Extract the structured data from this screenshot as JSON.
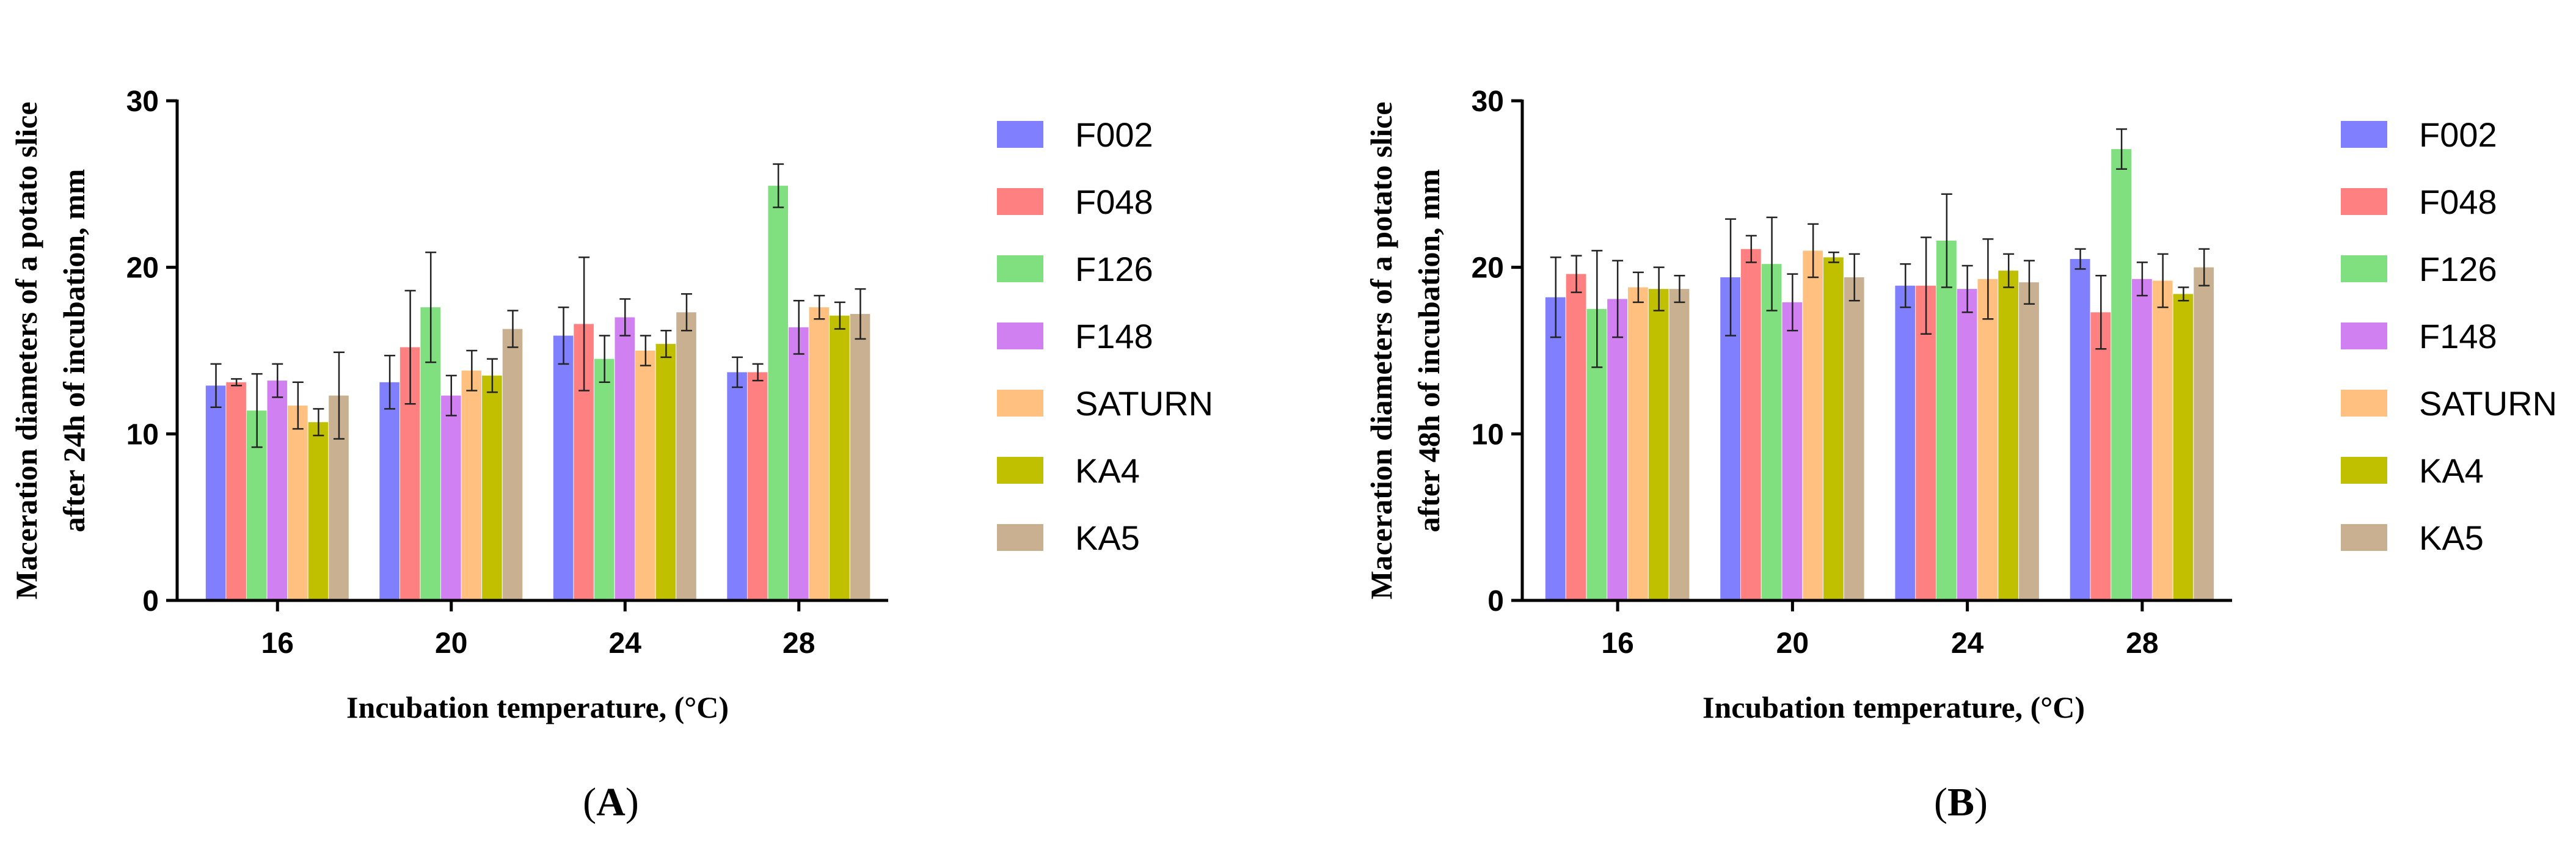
{
  "chart_data": [
    {
      "panel": "A",
      "panel_label": "A",
      "type": "bar",
      "categories": [
        "16",
        "20",
        "24",
        "28"
      ],
      "ylabel": [
        "Maceration diameters of a potato slice",
        "after 24h of incubation, mm"
      ],
      "xlabel": "Incubation temperature, (°C)",
      "ylim": [
        0,
        30
      ],
      "yticks": [
        0,
        10,
        20,
        30
      ],
      "series": [
        {
          "name": "F002",
          "values": [
            12.9,
            13.1,
            15.9,
            13.7
          ],
          "errors": [
            1.3,
            1.6,
            1.7,
            0.9
          ]
        },
        {
          "name": "F048",
          "values": [
            13.1,
            15.2,
            16.6,
            13.7
          ],
          "errors": [
            0.2,
            3.4,
            4.0,
            0.5
          ]
        },
        {
          "name": "F126",
          "values": [
            11.4,
            17.6,
            14.5,
            24.9
          ],
          "errors": [
            2.2,
            3.3,
            1.4,
            1.3
          ]
        },
        {
          "name": "F148",
          "values": [
            13.2,
            12.3,
            17.0,
            16.4
          ],
          "errors": [
            1.0,
            1.2,
            1.1,
            1.6
          ]
        },
        {
          "name": "SATURN",
          "values": [
            11.7,
            13.8,
            15.0,
            17.6
          ],
          "errors": [
            1.4,
            1.2,
            0.9,
            0.7
          ]
        },
        {
          "name": "KA4",
          "values": [
            10.7,
            13.5,
            15.4,
            17.1
          ],
          "errors": [
            0.8,
            1.0,
            0.8,
            0.8
          ]
        },
        {
          "name": "KA5",
          "values": [
            12.3,
            16.3,
            17.3,
            17.2
          ],
          "errors": [
            2.6,
            1.1,
            1.1,
            1.5
          ]
        }
      ]
    },
    {
      "panel": "B",
      "panel_label": "B",
      "type": "bar",
      "categories": [
        "16",
        "20",
        "24",
        "28"
      ],
      "ylabel": [
        "Maceration diameters of a potato slice",
        "after 48h of incubation, mm"
      ],
      "xlabel": "Incubation temperature, (°C)",
      "ylim": [
        0,
        30
      ],
      "yticks": [
        0,
        10,
        20,
        30
      ],
      "series": [
        {
          "name": "F002",
          "values": [
            18.2,
            19.4,
            18.9,
            20.5
          ],
          "errors": [
            2.4,
            3.5,
            1.3,
            0.6
          ]
        },
        {
          "name": "F048",
          "values": [
            19.6,
            21.1,
            18.9,
            17.3
          ],
          "errors": [
            1.1,
            0.8,
            2.9,
            2.2
          ]
        },
        {
          "name": "F126",
          "values": [
            17.5,
            20.2,
            21.6,
            27.1
          ],
          "errors": [
            3.5,
            2.8,
            2.8,
            1.2
          ]
        },
        {
          "name": "F148",
          "values": [
            18.1,
            17.9,
            18.7,
            19.3
          ],
          "errors": [
            2.3,
            1.7,
            1.4,
            1.0
          ]
        },
        {
          "name": "SATURN",
          "values": [
            18.8,
            21.0,
            19.3,
            19.2
          ],
          "errors": [
            0.9,
            1.6,
            2.4,
            1.6
          ]
        },
        {
          "name": "KA4",
          "values": [
            18.7,
            20.6,
            19.8,
            18.4
          ],
          "errors": [
            1.3,
            0.3,
            1.0,
            0.4
          ]
        },
        {
          "name": "KA5",
          "values": [
            18.7,
            19.4,
            19.1,
            20.0
          ],
          "errors": [
            0.8,
            1.4,
            1.3,
            1.1
          ]
        }
      ]
    }
  ],
  "series_colors": [
    "#8080ff",
    "#ff8080",
    "#80e080",
    "#d080f0",
    "#ffc080",
    "#c0c000",
    "#c8b090"
  ]
}
